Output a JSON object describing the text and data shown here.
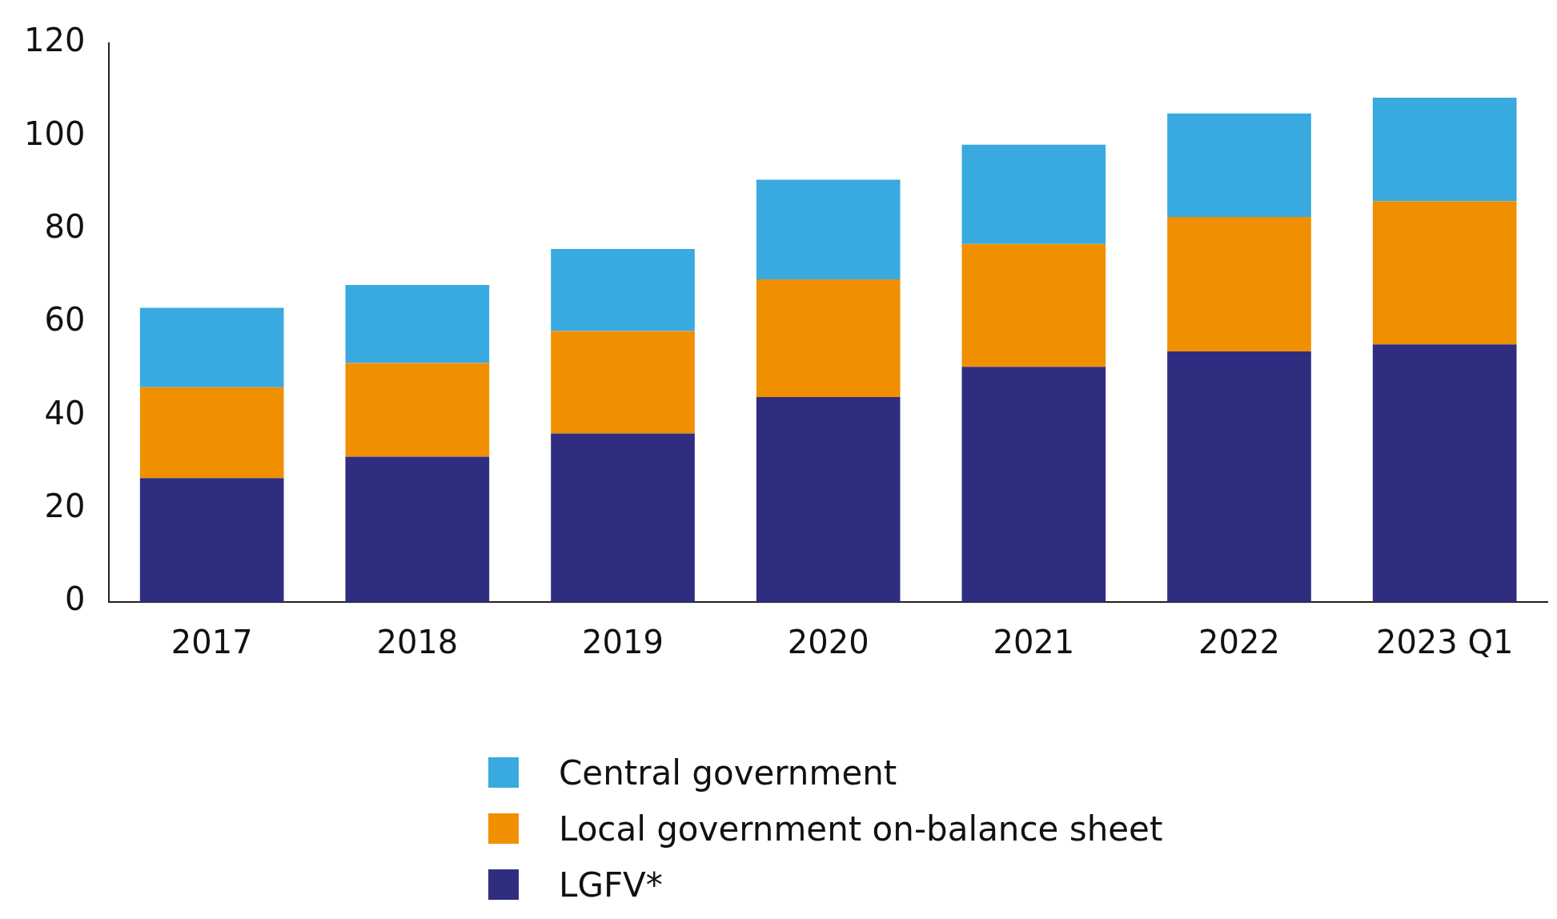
{
  "chart_data": {
    "type": "bar",
    "stacked": true,
    "categories": [
      "2017",
      "2018",
      "2019",
      "2020",
      "2021",
      "2022",
      "2023 Q1"
    ],
    "series": [
      {
        "name": "LGFV*",
        "color": "#2e2d80",
        "values": [
          26.6,
          31.2,
          36.2,
          44.0,
          50.5,
          53.8,
          55.3
        ]
      },
      {
        "name": "Local government on-balance sheet",
        "color": "#f09000",
        "values": [
          19.5,
          20.1,
          22.0,
          25.3,
          26.4,
          28.9,
          30.8
        ]
      },
      {
        "name": "Central government",
        "color": "#38aae0",
        "values": [
          17.1,
          16.8,
          17.6,
          21.4,
          21.3,
          22.2,
          22.2
        ]
      }
    ],
    "ylim": [
      0,
      120
    ],
    "yticks": [
      0,
      20,
      40,
      60,
      80,
      100,
      120
    ],
    "grid": false,
    "legend": "bottom"
  }
}
